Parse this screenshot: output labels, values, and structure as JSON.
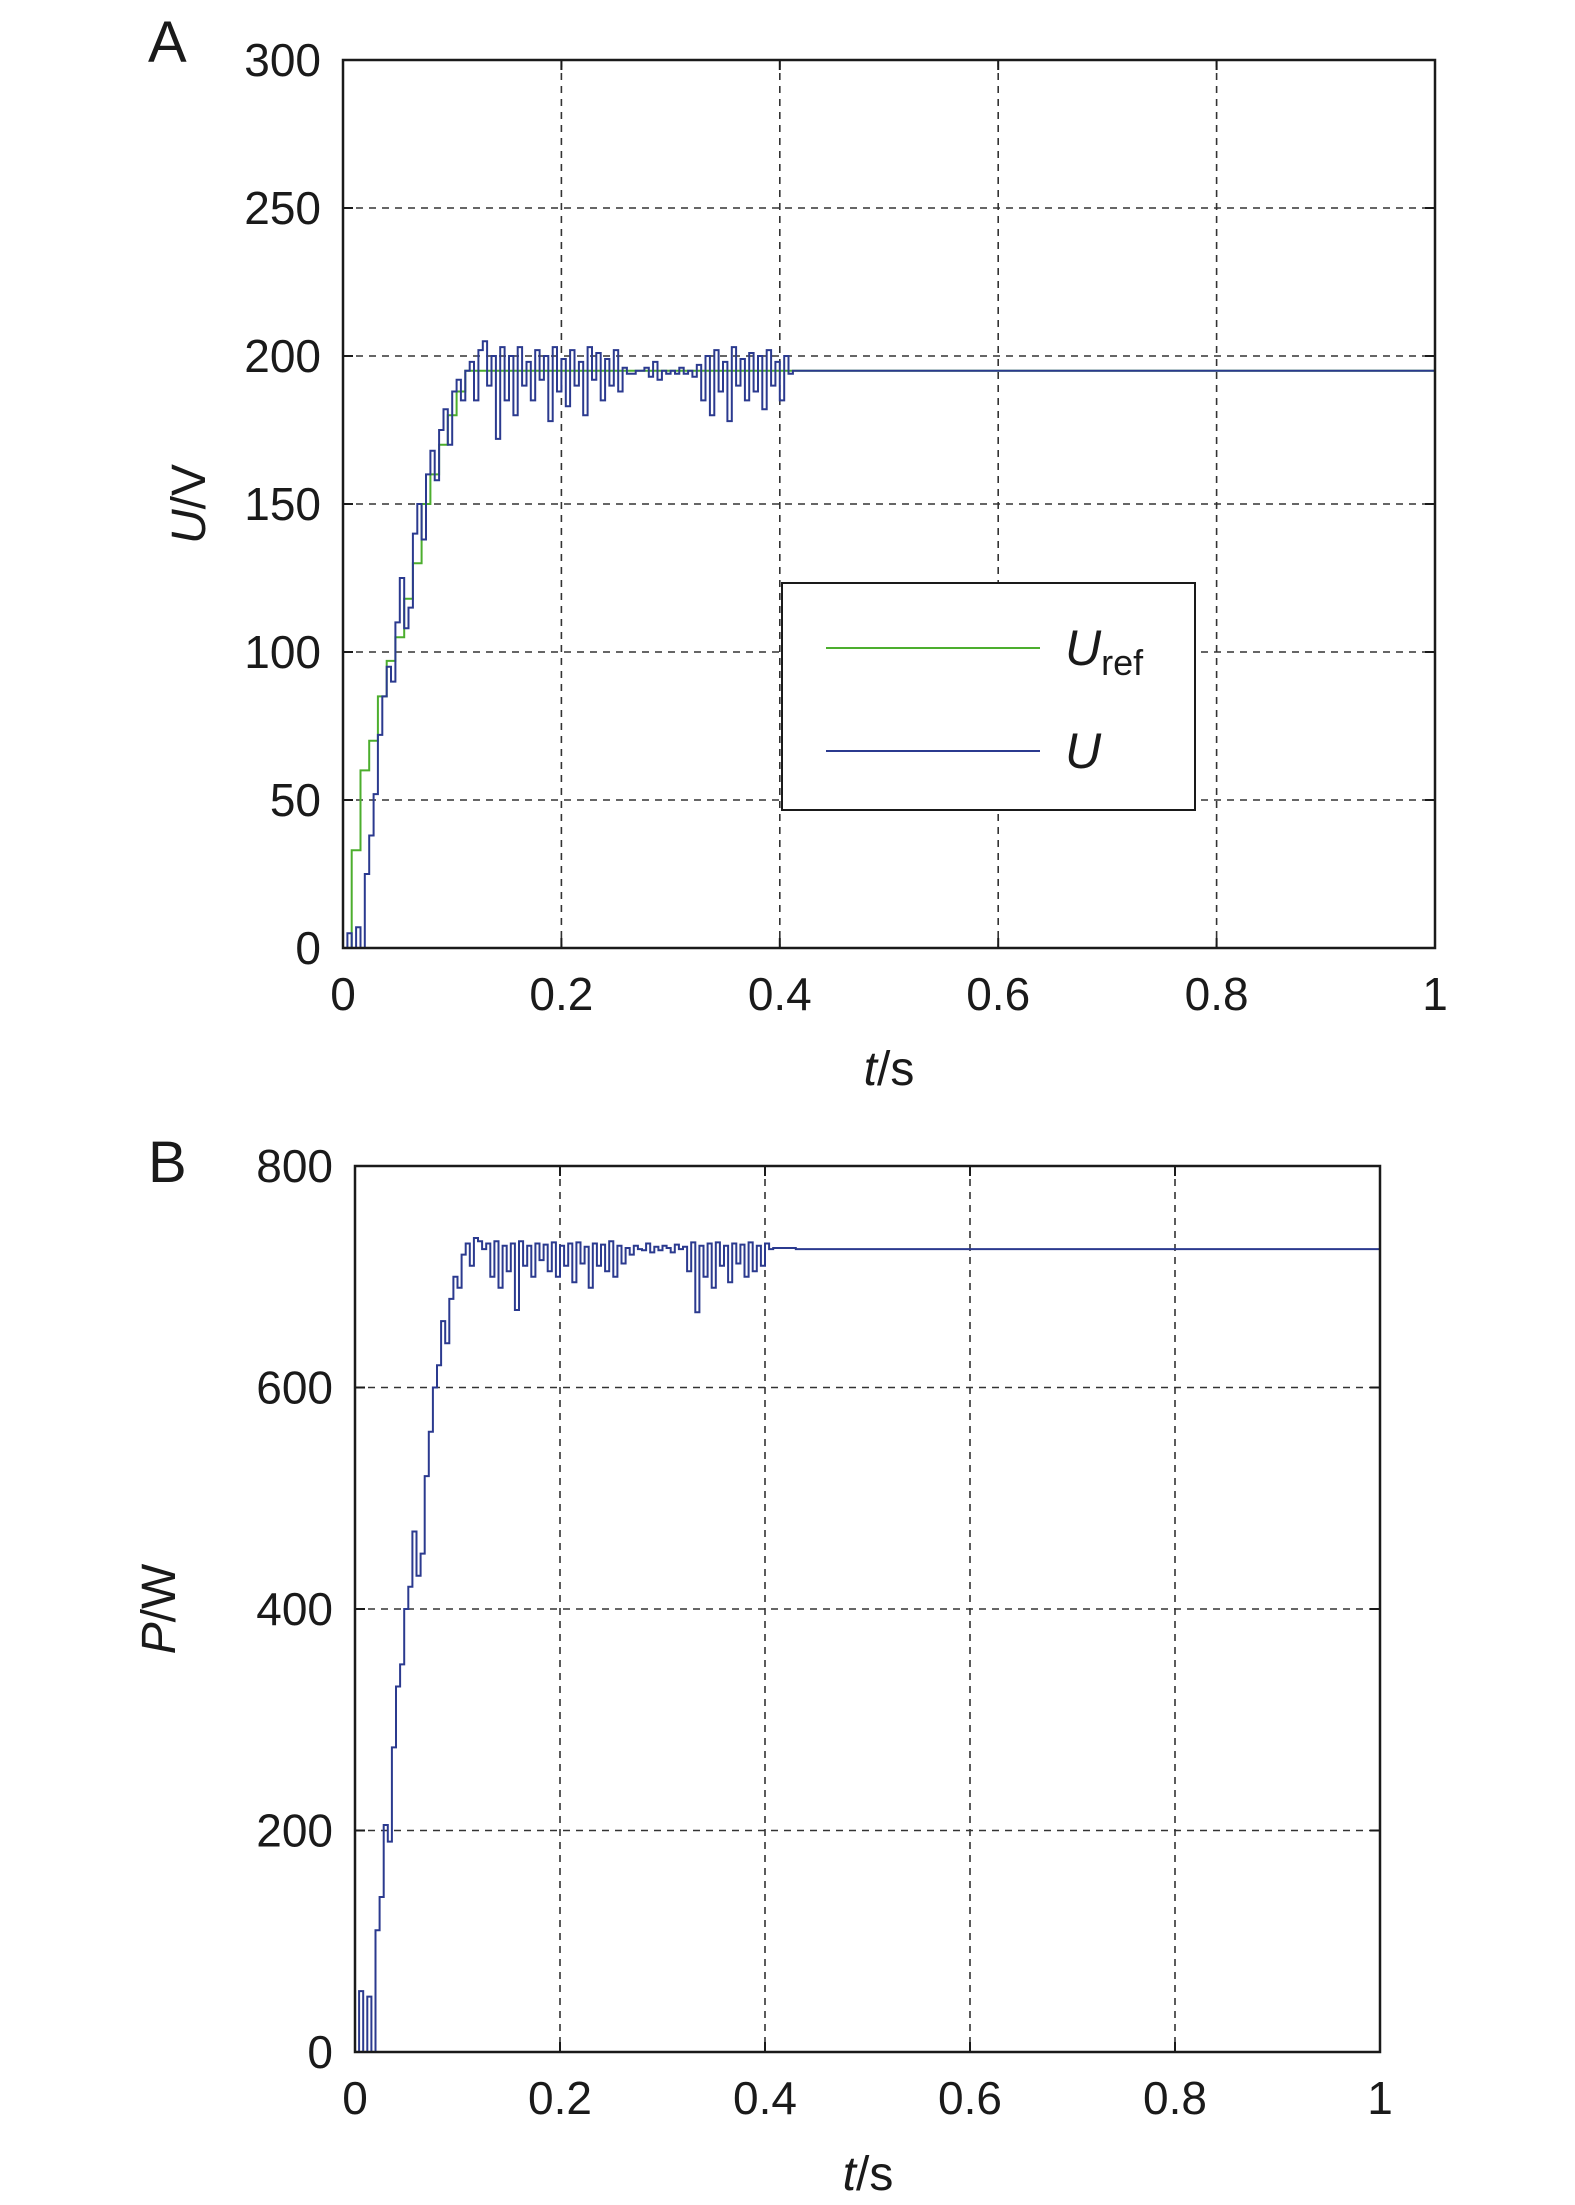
{
  "chart_data": [
    {
      "panel": "A",
      "type": "line",
      "xlabel_italic": "t",
      "xlabel_unit": "/s",
      "ylabel_italic": "U",
      "ylabel_unit": "/V",
      "xlim": [
        0,
        1
      ],
      "ylim": [
        0,
        300
      ],
      "x_ticks": [
        "0",
        "0.2",
        "0.4",
        "0.6",
        "0.8",
        "1"
      ],
      "y_ticks": [
        "0",
        "50",
        "100",
        "150",
        "200",
        "250",
        "300"
      ],
      "x_tick_values": [
        0,
        0.2,
        0.4,
        0.6,
        0.8,
        1
      ],
      "y_tick_values": [
        0,
        50,
        100,
        150,
        200,
        250,
        300
      ],
      "grid": true,
      "legend_position": "center-right",
      "series": [
        {
          "name": "U",
          "name_sub": "ref",
          "color": "#4cae2e",
          "step": true,
          "x": [
            0,
            0.008,
            0.016,
            0.024,
            0.032,
            0.04,
            0.048,
            0.056,
            0.064,
            0.072,
            0.08,
            0.088,
            0.096,
            0.104,
            0.112,
            0.12,
            1.0
          ],
          "y": [
            0,
            33,
            60,
            70,
            85,
            97,
            105,
            118,
            130,
            150,
            160,
            170,
            180,
            188,
            195,
            195,
            195
          ]
        },
        {
          "name": "U",
          "name_sub": "",
          "color": "#2b3a8f",
          "step": true,
          "x": [
            0,
            0.004,
            0.008,
            0.012,
            0.016,
            0.02,
            0.024,
            0.028,
            0.032,
            0.036,
            0.04,
            0.044,
            0.048,
            0.052,
            0.056,
            0.06,
            0.064,
            0.068,
            0.072,
            0.076,
            0.08,
            0.084,
            0.088,
            0.092,
            0.096,
            0.1,
            0.104,
            0.108,
            0.112,
            0.116,
            0.12,
            0.124,
            0.128,
            0.132,
            0.136,
            0.14,
            0.144,
            0.148,
            0.152,
            0.156,
            0.16,
            0.164,
            0.168,
            0.172,
            0.176,
            0.18,
            0.184,
            0.188,
            0.192,
            0.196,
            0.2,
            0.204,
            0.208,
            0.212,
            0.216,
            0.22,
            0.224,
            0.228,
            0.232,
            0.236,
            0.24,
            0.244,
            0.248,
            0.252,
            0.256,
            0.26,
            0.264,
            0.268,
            0.272,
            0.276,
            0.28,
            0.284,
            0.288,
            0.292,
            0.296,
            0.3,
            0.304,
            0.308,
            0.312,
            0.316,
            0.32,
            0.324,
            0.328,
            0.332,
            0.336,
            0.34,
            0.344,
            0.348,
            0.352,
            0.356,
            0.36,
            0.364,
            0.368,
            0.372,
            0.376,
            0.38,
            0.384,
            0.388,
            0.392,
            0.396,
            0.4,
            0.404,
            0.408,
            0.412,
            1.0
          ],
          "y": [
            0,
            5,
            0,
            7,
            0,
            25,
            38,
            52,
            72,
            85,
            95,
            90,
            110,
            125,
            108,
            115,
            140,
            150,
            138,
            160,
            168,
            158,
            175,
            182,
            170,
            188,
            192,
            185,
            195,
            198,
            185,
            202,
            205,
            190,
            200,
            172,
            203,
            185,
            200,
            180,
            203,
            190,
            198,
            185,
            202,
            192,
            200,
            178,
            203,
            188,
            199,
            183,
            202,
            190,
            198,
            180,
            203,
            192,
            201,
            185,
            199,
            190,
            202,
            188,
            196,
            194,
            194,
            195,
            195,
            196,
            193,
            198,
            192,
            195,
            194,
            195,
            194,
            196,
            194,
            195,
            193,
            197,
            185,
            200,
            180,
            202,
            188,
            198,
            178,
            203,
            190,
            199,
            185,
            201,
            188,
            200,
            182,
            202,
            190,
            198,
            185,
            200,
            194,
            195,
            195
          ]
        }
      ]
    },
    {
      "panel": "B",
      "type": "line",
      "xlabel_italic": "t",
      "xlabel_unit": "/s",
      "ylabel_italic": "P",
      "ylabel_unit": "/W",
      "xlim": [
        0,
        1
      ],
      "ylim": [
        0,
        800
      ],
      "x_ticks": [
        "0",
        "0.2",
        "0.4",
        "0.6",
        "0.8",
        "1"
      ],
      "y_ticks": [
        "0",
        "200",
        "400",
        "600",
        "800"
      ],
      "x_tick_values": [
        0,
        0.2,
        0.4,
        0.6,
        0.8,
        1
      ],
      "y_tick_values": [
        0,
        200,
        400,
        600,
        800
      ],
      "grid": true,
      "series": [
        {
          "name": "P",
          "color": "#2b3a8f",
          "step": true,
          "x": [
            0,
            0.004,
            0.008,
            0.012,
            0.016,
            0.02,
            0.024,
            0.028,
            0.032,
            0.036,
            0.04,
            0.044,
            0.048,
            0.052,
            0.056,
            0.06,
            0.064,
            0.068,
            0.072,
            0.076,
            0.08,
            0.084,
            0.088,
            0.092,
            0.096,
            0.1,
            0.104,
            0.108,
            0.112,
            0.116,
            0.12,
            0.124,
            0.128,
            0.132,
            0.136,
            0.14,
            0.144,
            0.148,
            0.152,
            0.156,
            0.16,
            0.164,
            0.168,
            0.172,
            0.176,
            0.18,
            0.184,
            0.188,
            0.192,
            0.196,
            0.2,
            0.204,
            0.208,
            0.212,
            0.216,
            0.22,
            0.224,
            0.228,
            0.232,
            0.236,
            0.24,
            0.244,
            0.248,
            0.252,
            0.256,
            0.26,
            0.264,
            0.268,
            0.272,
            0.276,
            0.28,
            0.284,
            0.288,
            0.292,
            0.296,
            0.3,
            0.304,
            0.308,
            0.312,
            0.316,
            0.32,
            0.324,
            0.328,
            0.332,
            0.336,
            0.34,
            0.344,
            0.348,
            0.352,
            0.356,
            0.36,
            0.364,
            0.368,
            0.372,
            0.376,
            0.38,
            0.384,
            0.388,
            0.392,
            0.396,
            0.4,
            0.404,
            0.408,
            0.412,
            0.43,
            1.0
          ],
          "y": [
            0,
            55,
            0,
            50,
            0,
            110,
            140,
            205,
            190,
            275,
            330,
            350,
            400,
            420,
            470,
            430,
            450,
            520,
            560,
            600,
            620,
            660,
            640,
            680,
            700,
            690,
            720,
            730,
            710,
            735,
            732,
            725,
            730,
            700,
            732,
            690,
            728,
            705,
            730,
            670,
            732,
            710,
            728,
            700,
            730,
            715,
            729,
            705,
            731,
            700,
            728,
            710,
            730,
            695,
            731,
            712,
            727,
            690,
            730,
            710,
            729,
            705,
            732,
            700,
            728,
            712,
            726,
            720,
            728,
            725,
            724,
            730,
            722,
            727,
            724,
            728,
            726,
            722,
            729,
            725,
            727,
            705,
            731,
            668,
            728,
            700,
            730,
            690,
            731,
            710,
            728,
            695,
            730,
            712,
            729,
            700,
            731,
            705,
            728,
            710,
            730,
            725,
            726,
            726,
            725,
            725
          ]
        }
      ]
    }
  ]
}
